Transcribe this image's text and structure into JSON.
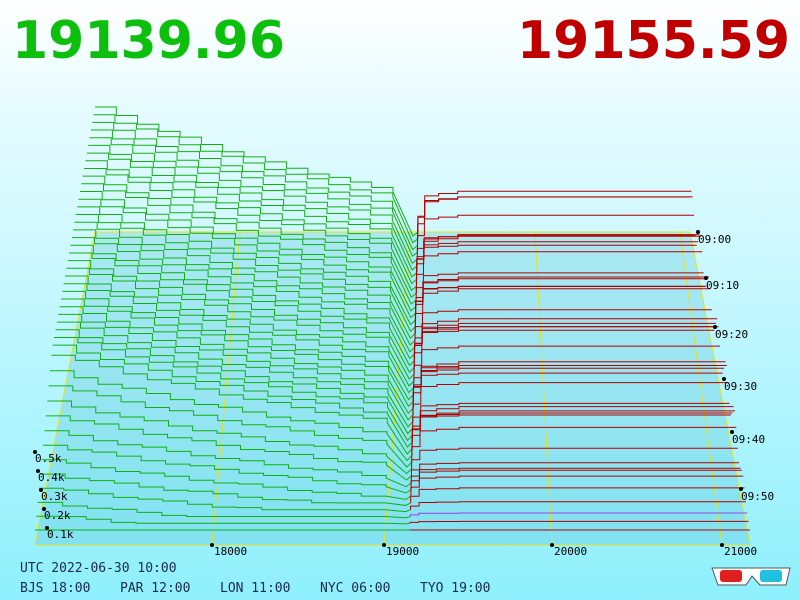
{
  "header": {
    "bid": "19139.96",
    "ask": "19155.59"
  },
  "price_axis": {
    "labels": [
      "18000",
      "19000",
      "20000",
      "21000"
    ]
  },
  "time_axis": {
    "labels": [
      "09:00",
      "09:10",
      "09:20",
      "09:30",
      "09:40",
      "09:50"
    ]
  },
  "depth_axis": {
    "labels": [
      "0.5k",
      "0.4k",
      "0.3k",
      "0.2k",
      "0.1k"
    ]
  },
  "footer": {
    "utc": "UTC 2022-06-30 10:00",
    "cities": [
      "BJS 18:00",
      "PAR 12:00",
      "LON 11:00",
      "NYC 06:00",
      "TYO 19:00"
    ]
  }
}
